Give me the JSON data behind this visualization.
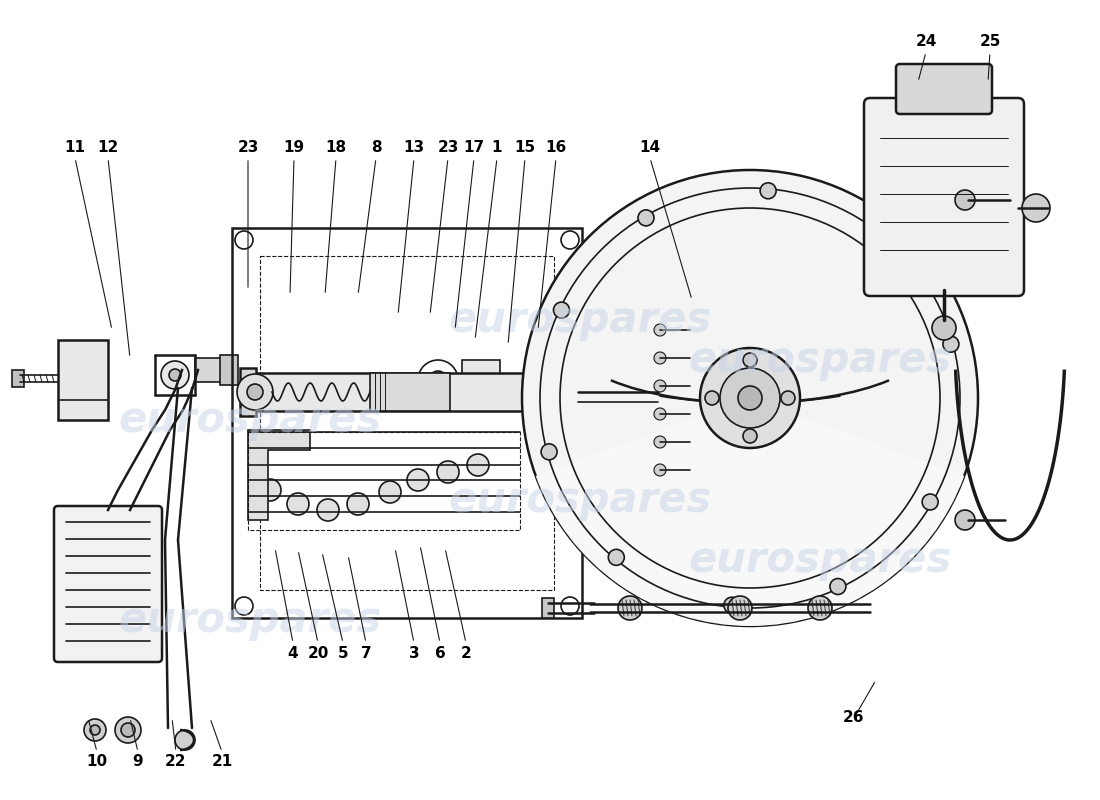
{
  "figsize": [
    11.0,
    8.0
  ],
  "dpi": 100,
  "bg_color": "#ffffff",
  "lc": "#1a1a1a",
  "wm_color": "#c8d4e8",
  "watermark": "eurospares",
  "label_fs": 11,
  "top_labels": [
    [
      "11",
      75,
      148
    ],
    [
      "12",
      108,
      148
    ],
    [
      "23",
      248,
      148
    ],
    [
      "19",
      294,
      148
    ],
    [
      "18",
      336,
      148
    ],
    [
      "8",
      376,
      148
    ],
    [
      "13",
      414,
      148
    ],
    [
      "23",
      448,
      148
    ],
    [
      "17",
      474,
      148
    ],
    [
      "1",
      497,
      148
    ],
    [
      "15",
      525,
      148
    ],
    [
      "16",
      556,
      148
    ],
    [
      "14",
      650,
      148
    ]
  ],
  "bot_labels": [
    [
      "4",
      293,
      653
    ],
    [
      "20",
      318,
      653
    ],
    [
      "5",
      343,
      653
    ],
    [
      "7",
      366,
      653
    ],
    [
      "3",
      414,
      653
    ],
    [
      "6",
      440,
      653
    ],
    [
      "2",
      466,
      653
    ]
  ],
  "bl_labels": [
    [
      "10",
      97,
      762
    ],
    [
      "9",
      138,
      762
    ],
    [
      "22",
      176,
      762
    ],
    [
      "21",
      222,
      762
    ]
  ],
  "tr_labels": [
    [
      "24",
      926,
      42
    ],
    [
      "25",
      990,
      42
    ]
  ],
  "extra_labels": [
    [
      "26",
      854,
      718
    ]
  ]
}
